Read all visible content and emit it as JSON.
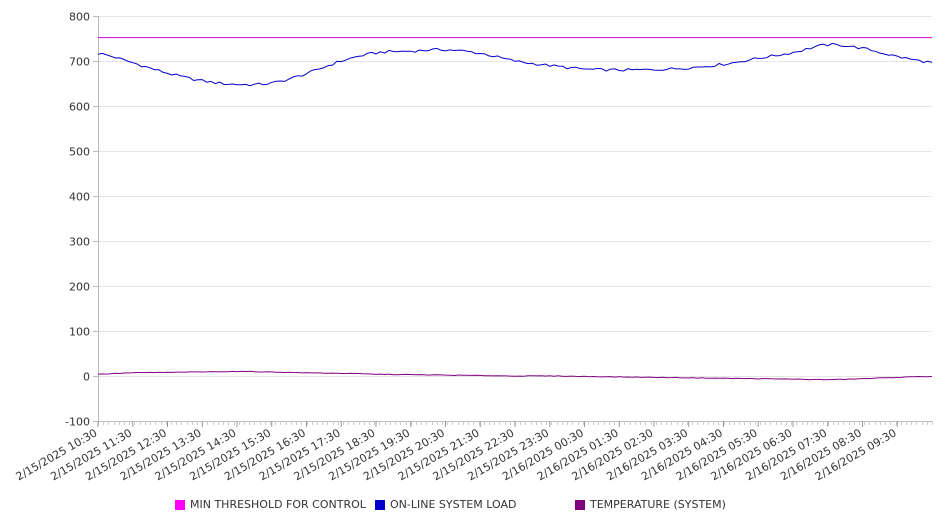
{
  "chart_data": {
    "type": "line",
    "title": "",
    "xlabel": "",
    "ylabel": "",
    "ylim": [
      -100,
      800
    ],
    "y_ticks": [
      800,
      700,
      600,
      500,
      400,
      300,
      200,
      100,
      0,
      -100
    ],
    "grid": "horizontal",
    "legend_position": "bottom",
    "x_tick_labels": [
      "2/15/2025 10:30",
      "2/15/2025 11:30",
      "2/15/2025 12:30",
      "2/15/2025 13:30",
      "2/15/2025 14:30",
      "2/15/2025 15:30",
      "2/15/2025 16:30",
      "2/15/2025 17:30",
      "2/15/2025 18:30",
      "2/15/2025 19:30",
      "2/15/2025 20:30",
      "2/15/2025 21:30",
      "2/15/2025 22:30",
      "2/15/2025 23:30",
      "2/16/2025 00:30",
      "2/16/2025 01:30",
      "2/16/2025 02:30",
      "2/16/2025 03:30",
      "2/16/2025 04:30",
      "2/16/2025 05:30",
      "2/16/2025 06:30",
      "2/16/2025 07:30",
      "2/16/2025 08:30",
      "2/16/2025 09:30"
    ],
    "x": [
      "2/15/2025 10:30",
      "2/15/2025 11:30",
      "2/15/2025 12:30",
      "2/15/2025 13:30",
      "2/15/2025 14:30",
      "2/15/2025 15:30",
      "2/15/2025 16:30",
      "2/15/2025 17:30",
      "2/15/2025 18:30",
      "2/15/2025 19:30",
      "2/15/2025 20:30",
      "2/15/2025 21:30",
      "2/15/2025 22:30",
      "2/15/2025 23:30",
      "2/16/2025 00:30",
      "2/16/2025 01:30",
      "2/16/2025 02:30",
      "2/16/2025 03:30",
      "2/16/2025 04:30",
      "2/16/2025 05:30",
      "2/16/2025 06:30",
      "2/16/2025 07:30",
      "2/16/2025 08:30",
      "2/16/2025 09:30",
      "2/16/2025 10:30"
    ],
    "series": [
      {
        "name": "MIN THRESHOLD FOR CONTROL",
        "color": "#cc00cc",
        "values": [
          752,
          752,
          752,
          752,
          752,
          752,
          752,
          752,
          752,
          752,
          752,
          752,
          752,
          752,
          752,
          752,
          752,
          752,
          752,
          752,
          752,
          752,
          752,
          752,
          752
        ]
      },
      {
        "name": "ON-LINE SYSTEM LOAD",
        "color": "#0000cc",
        "values": [
          717,
          696,
          673,
          656,
          648,
          651,
          672,
          700,
          718,
          722,
          725,
          717,
          700,
          690,
          682,
          680,
          681,
          685,
          693,
          706,
          719,
          736,
          728,
          710,
          697
        ]
      },
      {
        "name": "TEMPERATURE (SYSTEM)",
        "color": "#800080",
        "values": [
          4,
          7,
          8,
          9,
          10,
          9,
          7,
          6,
          4,
          3,
          2,
          1,
          0,
          0,
          -1,
          -2,
          -3,
          -4,
          -5,
          -6,
          -7,
          -8,
          -6,
          -3,
          -1
        ]
      }
    ]
  }
}
